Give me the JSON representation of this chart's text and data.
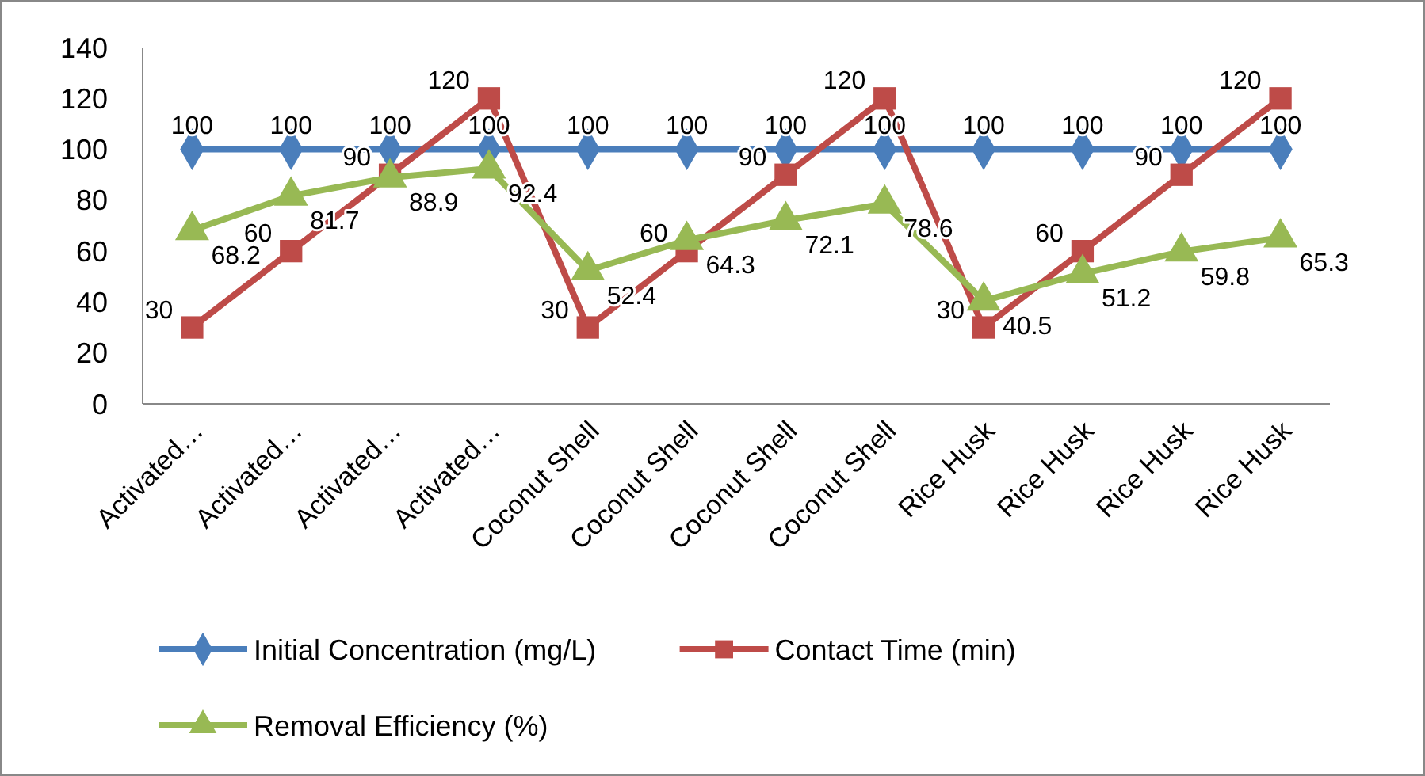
{
  "chart_data": {
    "type": "line",
    "categories": [
      "Activated…",
      "Activated…",
      "Activated…",
      "Activated…",
      "Coconut Shell",
      "Coconut Shell",
      "Coconut Shell",
      "Coconut Shell",
      "Rice Husk",
      "Rice Husk",
      "Rice Husk",
      "Rice Husk"
    ],
    "series": [
      {
        "name": "Initial Concentration (mg/L)",
        "color": "#4a7ebb",
        "marker": "diamond",
        "values": [
          100,
          100,
          100,
          100,
          100,
          100,
          100,
          100,
          100,
          100,
          100,
          100
        ]
      },
      {
        "name": "Contact Time (min)",
        "color": "#be4b48",
        "marker": "square",
        "values": [
          30,
          60,
          90,
          120,
          30,
          60,
          90,
          120,
          30,
          60,
          90,
          120
        ]
      },
      {
        "name": "Removal Efficiency (%)",
        "color": "#98b954",
        "marker": "triangle",
        "values": [
          68.2,
          81.7,
          88.9,
          92.4,
          52.4,
          64.3,
          72.1,
          78.6,
          40.5,
          51.2,
          59.8,
          65.3
        ]
      }
    ],
    "ylim": [
      0,
      140
    ],
    "yticks": [
      0,
      20,
      40,
      60,
      80,
      100,
      120,
      140
    ],
    "data_labels": true,
    "legend": "bottom",
    "grid": false
  }
}
